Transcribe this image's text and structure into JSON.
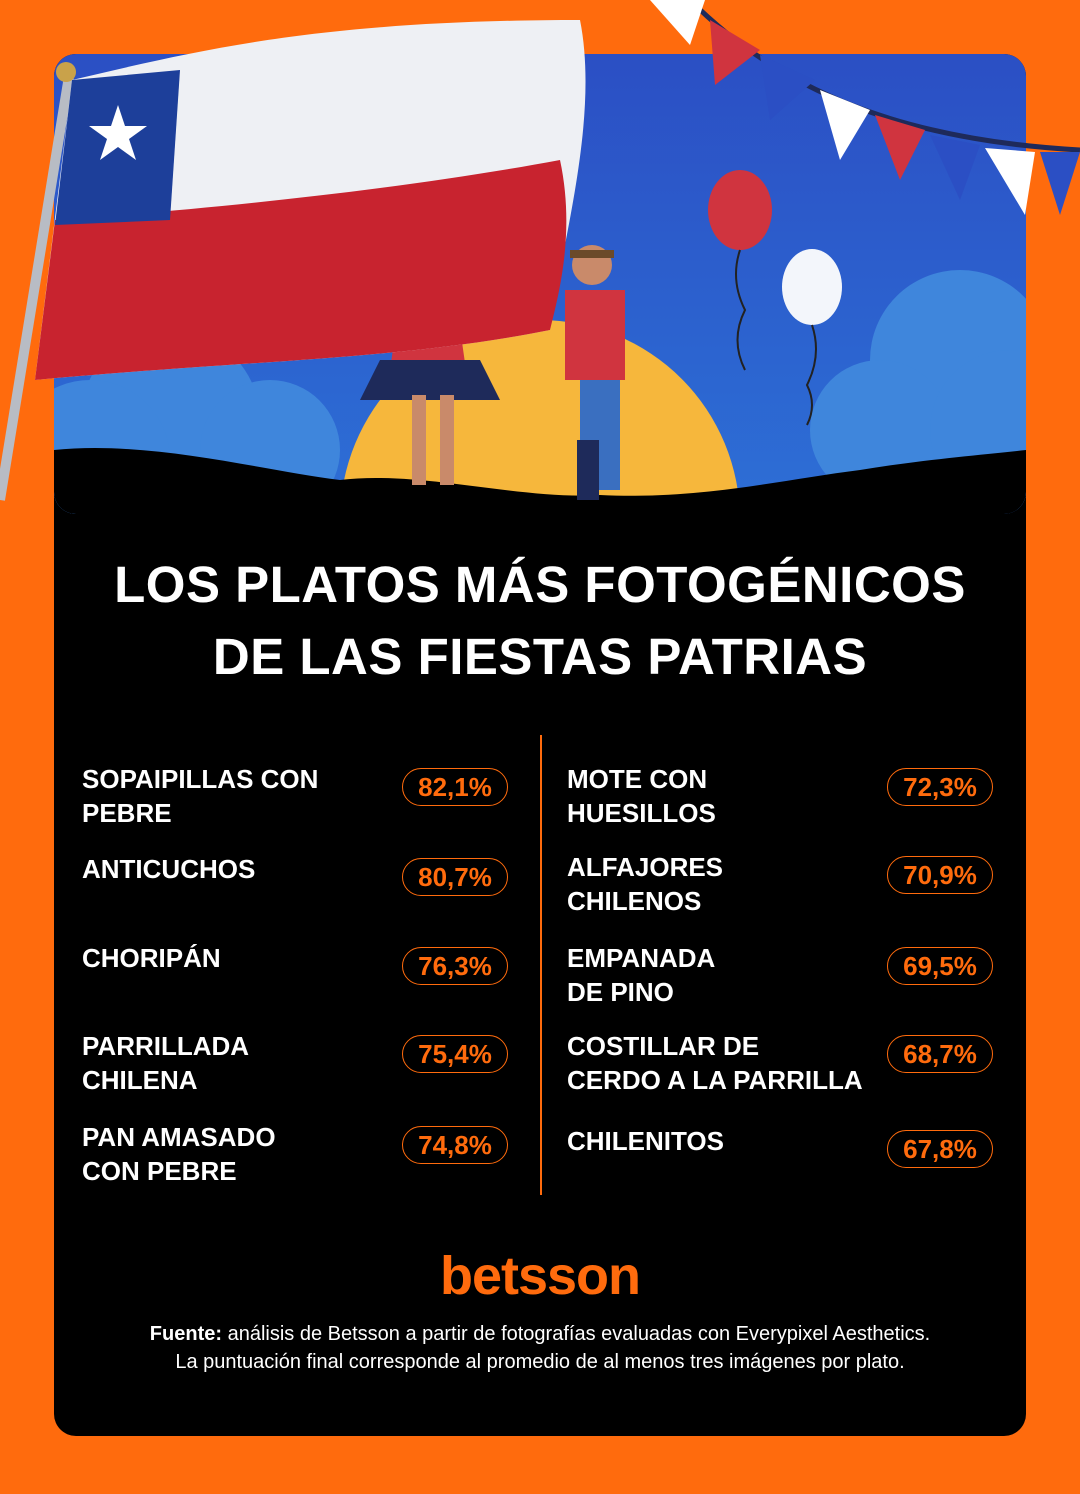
{
  "title": {
    "lines": [
      "LOS PLATOS MÁS FOTOGÉNICOS",
      "DE LAS FIESTAS PATRIAS"
    ]
  },
  "ranking": {
    "left": [
      {
        "name_lines": [
          "SOPAIPILLAS CON",
          "PEBRE"
        ],
        "score": "82,1%"
      },
      {
        "name_lines": [
          "ANTICUCHOS"
        ],
        "score": "80,7%"
      },
      {
        "name_lines": [
          "CHORIPÁN"
        ],
        "score": "76,3%"
      },
      {
        "name_lines": [
          "PARRILLADA",
          "CHILENA"
        ],
        "score": "75,4%"
      },
      {
        "name_lines": [
          "PAN AMASADO",
          "CON PEBRE"
        ],
        "score": "74,8%"
      }
    ],
    "right": [
      {
        "name_lines": [
          "MOTE CON",
          "HUESILLOS"
        ],
        "score": "72,3%"
      },
      {
        "name_lines": [
          "ALFAJORES",
          "CHILENOS"
        ],
        "score": "70,9%"
      },
      {
        "name_lines": [
          "EMPANADA",
          "DE PINO"
        ],
        "score": "69,5%"
      },
      {
        "name_lines": [
          "COSTILLAR DE",
          "CERDO A LA PARRILLA"
        ],
        "score": "68,7%"
      },
      {
        "name_lines": [
          "CHILENITOS"
        ],
        "score": "67,8%"
      }
    ]
  },
  "brand": "betsson",
  "footer": {
    "label": "Fuente:",
    "lines": [
      "análisis de Betsson a partir de fotografías evaluadas con Everypixel Aesthetics.",
      "La puntuación final corresponde al promedio de al menos tres imágenes por plato."
    ]
  }
}
